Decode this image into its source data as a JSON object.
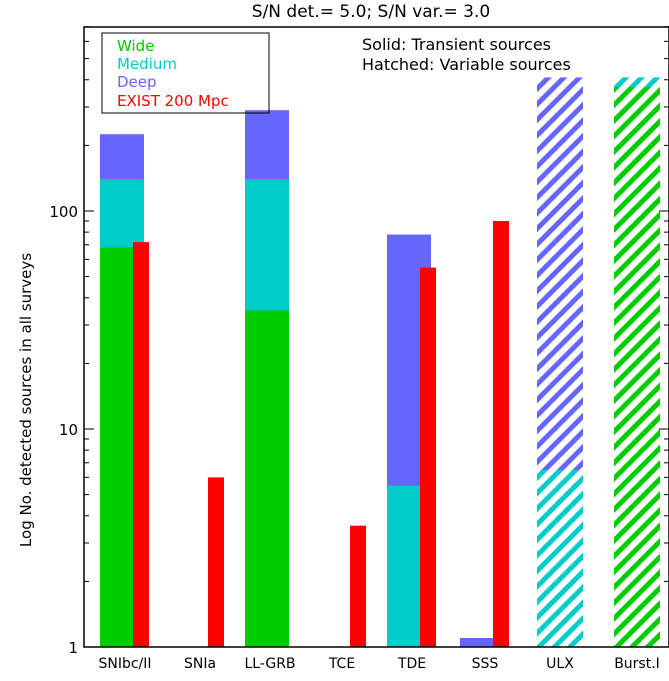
{
  "chart_data": {
    "type": "bar",
    "title": "S/N det.= 5.0; S/N var.= 3.0",
    "xlabel": "",
    "ylabel": "Log No. detected sources in all surveys",
    "yscale": "log",
    "ylim": [
      1,
      700
    ],
    "yticks": [
      {
        "value": 1,
        "label": "1"
      },
      {
        "value": 10,
        "label": "10"
      },
      {
        "value": 100,
        "label": "100"
      }
    ],
    "categories": [
      "SNIbc/II",
      "SNIa",
      "LL-GRB",
      "TCE",
      "TDE",
      "SSS",
      "ULX",
      "Burst.I"
    ],
    "series": [
      {
        "name": "Wide",
        "color": "#00cc00",
        "values": [
          68,
          null,
          35,
          null,
          null,
          null,
          null,
          370
        ]
      },
      {
        "name": "Medium",
        "color": "#00cccc",
        "values": [
          140,
          null,
          140,
          null,
          5.5,
          null,
          6.5,
          410
        ]
      },
      {
        "name": "Deep",
        "color": "#6666ff",
        "values": [
          225,
          null,
          290,
          null,
          78,
          1.1,
          410,
          null
        ]
      },
      {
        "name": "EXIST 200 Mpc",
        "color": "#ff0000",
        "values": [
          72,
          6,
          null,
          3.6,
          55,
          90,
          null,
          null
        ]
      }
    ],
    "hatched_categories": [
      "ULX",
      "Burst.I"
    ],
    "annotations": [
      "Solid: Transient sources",
      "Hatched: Variable sources"
    ],
    "legend_position": "top-left",
    "grid": false
  }
}
